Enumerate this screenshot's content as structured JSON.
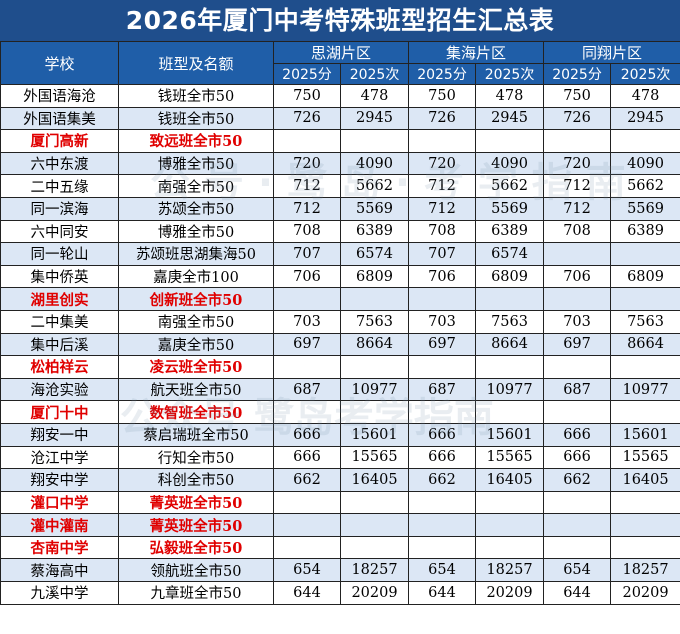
{
  "title": "2026年厦门中考特殊班型招生汇总表",
  "headers": {
    "school": "学校",
    "class_type": "班型及名额",
    "regions": [
      "思湖片区",
      "集海片区",
      "同翔片区"
    ],
    "sub": [
      "2025分",
      "2025次"
    ]
  },
  "rows": [
    {
      "school": "外国语海沧",
      "class": "钱班全市50",
      "v": [
        "750",
        "478",
        "750",
        "478",
        "750",
        "478"
      ],
      "red": false
    },
    {
      "school": "外国语集美",
      "class": "钱班全市50",
      "v": [
        "726",
        "2945",
        "726",
        "2945",
        "726",
        "2945"
      ],
      "red": false
    },
    {
      "school": "厦门高新",
      "class": "致远班全市50",
      "v": [
        "",
        "",
        "",
        "",
        "",
        ""
      ],
      "red": true
    },
    {
      "school": "六中东渡",
      "class": "博雅全市50",
      "v": [
        "720",
        "4090",
        "720",
        "4090",
        "720",
        "4090"
      ],
      "red": false
    },
    {
      "school": "二中五缘",
      "class": "南强全市50",
      "v": [
        "712",
        "5662",
        "712",
        "5662",
        "712",
        "5662"
      ],
      "red": false
    },
    {
      "school": "同一滨海",
      "class": "苏颂全市50",
      "v": [
        "712",
        "5569",
        "712",
        "5569",
        "712",
        "5569"
      ],
      "red": false
    },
    {
      "school": "六中同安",
      "class": "博雅全市50",
      "v": [
        "708",
        "6389",
        "708",
        "6389",
        "708",
        "6389"
      ],
      "red": false
    },
    {
      "school": "同一轮山",
      "class": "苏颂班思湖集海50",
      "v": [
        "707",
        "6574",
        "707",
        "6574",
        "",
        ""
      ],
      "red": false
    },
    {
      "school": "集中侨英",
      "class": "嘉庚全市100",
      "v": [
        "706",
        "6809",
        "706",
        "6809",
        "706",
        "6809"
      ],
      "red": false
    },
    {
      "school": "湖里创实",
      "class": "创新班全市50",
      "v": [
        "",
        "",
        "",
        "",
        "",
        ""
      ],
      "red": true
    },
    {
      "school": "二中集美",
      "class": "南强全市50",
      "v": [
        "703",
        "7563",
        "703",
        "7563",
        "703",
        "7563"
      ],
      "red": false
    },
    {
      "school": "集中后溪",
      "class": "嘉庚全市50",
      "v": [
        "697",
        "8664",
        "697",
        "8664",
        "697",
        "8664"
      ],
      "red": false
    },
    {
      "school": "松柏祥云",
      "class": "凌云班全市50",
      "v": [
        "",
        "",
        "",
        "",
        "",
        ""
      ],
      "red": true
    },
    {
      "school": "海沧实验",
      "class": "航天班全市50",
      "v": [
        "687",
        "10977",
        "687",
        "10977",
        "687",
        "10977"
      ],
      "red": false
    },
    {
      "school": "厦门十中",
      "class": "数智班全市50",
      "v": [
        "",
        "",
        "",
        "",
        "",
        ""
      ],
      "red": true
    },
    {
      "school": "翔安一中",
      "class": "蔡启瑞班全市50",
      "v": [
        "666",
        "15601",
        "666",
        "15601",
        "666",
        "15601"
      ],
      "red": false
    },
    {
      "school": "沧江中学",
      "class": "行知全市50",
      "v": [
        "666",
        "15565",
        "666",
        "15565",
        "666",
        "15565"
      ],
      "red": false
    },
    {
      "school": "翔安中学",
      "class": "科创全市50",
      "v": [
        "662",
        "16405",
        "662",
        "16405",
        "662",
        "16405"
      ],
      "red": false
    },
    {
      "school": "灌口中学",
      "class": "菁英班全市50",
      "v": [
        "",
        "",
        "",
        "",
        "",
        ""
      ],
      "red": true
    },
    {
      "school": "灌中灌南",
      "class": "菁英班全市50",
      "v": [
        "",
        "",
        "",
        "",
        "",
        ""
      ],
      "red": true
    },
    {
      "school": "杏南中学",
      "class": "弘毅班全市50",
      "v": [
        "",
        "",
        "",
        "",
        "",
        ""
      ],
      "red": true
    },
    {
      "school": "蔡海高中",
      "class": "领航班全市50",
      "v": [
        "654",
        "18257",
        "654",
        "18257",
        "654",
        "18257"
      ],
      "red": false
    },
    {
      "school": "九溪中学",
      "class": "九章班全市50",
      "v": [
        "644",
        "20209",
        "644",
        "20209",
        "644",
        "20209"
      ],
      "red": false
    }
  ],
  "colors": {
    "title_bg": "#1f4e8c",
    "header_bg": "#1f5ea8",
    "stripe": "#dce7f5",
    "red_text": "#e00000"
  }
}
